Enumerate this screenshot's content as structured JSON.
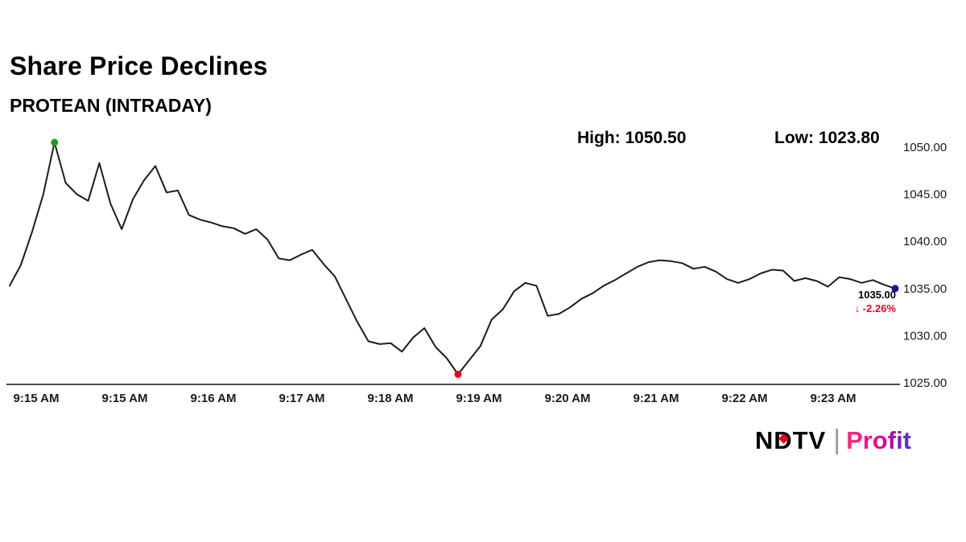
{
  "header": {
    "title": "Share Price Declines",
    "subtitle": "PROTEAN (INTRADAY)",
    "high_label": "High: 1050.50",
    "low_label": "Low: 1023.80"
  },
  "annotation": {
    "last_price": "1035.00",
    "change": "↓ -2.26%"
  },
  "logo": {
    "ndtv": "NDTV",
    "separator": "|",
    "profit": "Profit"
  },
  "chart_data": {
    "type": "line",
    "title": "Share Price Declines",
    "subtitle": "PROTEAN (INTRADAY)",
    "series_name": "PROTEAN intraday share price",
    "high": 1050.5,
    "low": 1023.8,
    "last": 1035.0,
    "change_pct": -2.26,
    "grid": false,
    "legend": "none",
    "ylim": [
      1025,
      1050
    ],
    "x_ticks": [
      "9:15 AM",
      "9:15 AM",
      "9:16 AM",
      "9:17 AM",
      "9:18 AM",
      "9:19 AM",
      "9:20 AM",
      "9:21 AM",
      "9:22 AM",
      "9:23 AM"
    ],
    "y_ticks": [
      1050,
      1045,
      1040,
      1035,
      1030,
      1025
    ],
    "y_tick_labels": [
      "1050.00",
      "1045.00",
      "1040.00",
      "1035.00",
      "1030.00",
      "1025.00"
    ],
    "line_color": "#1c1c1c",
    "axis_color": "#4d4d4d",
    "marker_colors": {
      "high": "#1e9e1e",
      "low": "#e8001c",
      "last": "#1515a3"
    },
    "values": [
      1035.3,
      1037.5,
      1041.0,
      1045.0,
      1050.5,
      1046.2,
      1045.0,
      1044.3,
      1048.3,
      1044.0,
      1041.3,
      1044.5,
      1046.5,
      1048.0,
      1045.2,
      1045.4,
      1042.8,
      1042.3,
      1042.0,
      1041.6,
      1041.4,
      1040.8,
      1041.3,
      1040.2,
      1038.2,
      1038.0,
      1038.6,
      1039.1,
      1037.6,
      1036.3,
      1033.9,
      1031.5,
      1029.4,
      1029.1,
      1029.2,
      1028.3,
      1029.8,
      1030.8,
      1028.8,
      1027.6,
      1025.9,
      1027.4,
      1028.9,
      1031.7,
      1032.8,
      1034.7,
      1035.6,
      1035.3,
      1032.1,
      1032.3,
      1033.0,
      1033.9,
      1034.5,
      1035.3,
      1035.9,
      1036.6,
      1037.3,
      1037.8,
      1038.0,
      1037.9,
      1037.7,
      1037.1,
      1037.3,
      1036.8,
      1036.0,
      1035.6,
      1036.0,
      1036.6,
      1037.0,
      1036.9,
      1035.8,
      1036.1,
      1035.8,
      1035.2,
      1036.2,
      1036.0,
      1035.6,
      1035.9,
      1035.4,
      1035.0
    ]
  }
}
